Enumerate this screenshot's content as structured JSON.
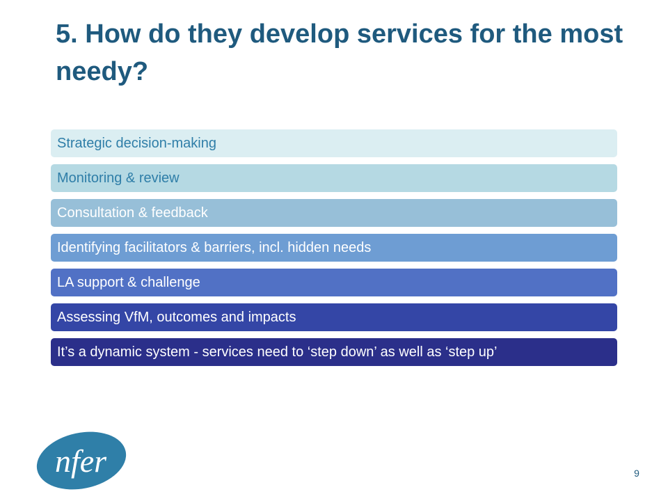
{
  "slide": {
    "title": "5. How do they develop services for the most needy?",
    "items": [
      {
        "label": "Strategic decision-making"
      },
      {
        "label": "Monitoring & review"
      },
      {
        "label": "Consultation & feedback"
      },
      {
        "label": "Identifying facilitators & barriers, incl. hidden needs"
      },
      {
        "label": "LA support & challenge"
      },
      {
        "label": "Assessing VfM, outcomes and impacts"
      },
      {
        "label": "It’s a dynamic system - services need to ‘step down’ as well as ‘step up’"
      }
    ],
    "page_number": "9"
  },
  "logo": {
    "text": "nfer",
    "color": "#2f7fa8"
  },
  "colors": {
    "title": "#1f5a7e",
    "bars": [
      "#dbeef2",
      "#b5d9e3",
      "#97bfd8",
      "#6e9dd3",
      "#5171c5",
      "#3446a6",
      "#2b2f8a"
    ]
  }
}
